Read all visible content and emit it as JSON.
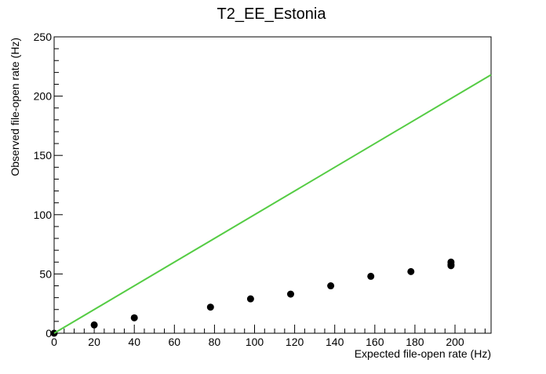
{
  "chart_data": {
    "type": "scatter",
    "title": "T2_EE_Estonia",
    "xlabel": "Expected file-open rate (Hz)",
    "ylabel": "Observed file-open rate (Hz)",
    "xlim": [
      0,
      218
    ],
    "ylim": [
      0,
      250
    ],
    "x_ticks": [
      0,
      20,
      40,
      60,
      80,
      100,
      120,
      140,
      160,
      180,
      200
    ],
    "y_ticks": [
      0,
      50,
      100,
      150,
      200,
      250
    ],
    "grid": false,
    "series": [
      {
        "type": "scatter",
        "color": "#000000",
        "points": [
          {
            "x": 0,
            "y": 0
          },
          {
            "x": 20,
            "y": 7
          },
          {
            "x": 40,
            "y": 13
          },
          {
            "x": 78,
            "y": 22
          },
          {
            "x": 98,
            "y": 29
          },
          {
            "x": 118,
            "y": 33
          },
          {
            "x": 138,
            "y": 40
          },
          {
            "x": 158,
            "y": 48
          },
          {
            "x": 178,
            "y": 52
          },
          {
            "x": 198,
            "y": 57
          },
          {
            "x": 198,
            "y": 58
          },
          {
            "x": 198,
            "y": 60
          }
        ]
      },
      {
        "type": "line",
        "color": "#55cc44",
        "points": [
          {
            "x": 0,
            "y": 0
          },
          {
            "x": 218,
            "y": 218
          }
        ]
      }
    ]
  }
}
